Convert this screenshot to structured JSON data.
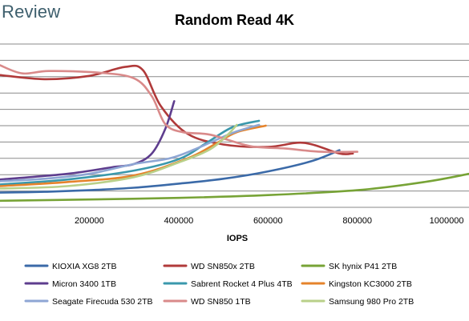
{
  "watermark": "Review",
  "chart_data": {
    "type": "line",
    "title": "Random Read 4K",
    "xlabel": "IOPS",
    "ylabel": "",
    "xlim": [
      0,
      1050000
    ],
    "ylim": [
      0,
      10
    ],
    "xticks": [
      200000,
      400000,
      600000,
      800000,
      1000000
    ],
    "xtick_labels": [
      "200000",
      "400000",
      "600000",
      "800000",
      "1000000"
    ],
    "grid": "horizontal",
    "legend_position": "bottom",
    "series": [
      {
        "name": "KIOXIA XG8 2TB",
        "color": "#3b6aa8",
        "points": [
          [
            0,
            0.9
          ],
          [
            100000,
            0.95
          ],
          [
            200000,
            1.05
          ],
          [
            300000,
            1.2
          ],
          [
            400000,
            1.45
          ],
          [
            500000,
            1.75
          ],
          [
            600000,
            2.2
          ],
          [
            700000,
            2.85
          ],
          [
            760000,
            3.5
          ]
        ]
      },
      {
        "name": "WD SN850x 2TB",
        "color": "#b03a3a",
        "points": [
          [
            0,
            8.1
          ],
          [
            100000,
            7.85
          ],
          [
            200000,
            8.05
          ],
          [
            280000,
            8.6
          ],
          [
            320000,
            8.4
          ],
          [
            360000,
            6.2
          ],
          [
            420000,
            4.5
          ],
          [
            500000,
            3.85
          ],
          [
            600000,
            3.7
          ],
          [
            680000,
            3.95
          ],
          [
            760000,
            3.3
          ],
          [
            790000,
            3.3
          ]
        ]
      },
      {
        "name": "SK hynix P41 2TB",
        "color": "#77a336",
        "points": [
          [
            0,
            0.4
          ],
          [
            200000,
            0.48
          ],
          [
            400000,
            0.58
          ],
          [
            600000,
            0.75
          ],
          [
            800000,
            1.05
          ],
          [
            950000,
            1.55
          ],
          [
            1050000,
            2.05
          ]
        ]
      },
      {
        "name": "Micron 3400 1TB",
        "color": "#5e3d8e",
        "points": [
          [
            0,
            1.7
          ],
          [
            150000,
            2.05
          ],
          [
            250000,
            2.45
          ],
          [
            300000,
            2.65
          ],
          [
            340000,
            3.3
          ],
          [
            370000,
            4.8
          ],
          [
            390000,
            6.5
          ]
        ]
      },
      {
        "name": "Sabrent Rocket 4 Plus 4TB",
        "color": "#3a98ac",
        "points": [
          [
            0,
            1.4
          ],
          [
            150000,
            1.7
          ],
          [
            300000,
            2.25
          ],
          [
            400000,
            2.95
          ],
          [
            460000,
            3.9
          ],
          [
            520000,
            4.9
          ],
          [
            580000,
            5.3
          ]
        ]
      },
      {
        "name": "Kingston KC3000 2TB",
        "color": "#e5832b",
        "points": [
          [
            0,
            1.3
          ],
          [
            150000,
            1.55
          ],
          [
            300000,
            1.95
          ],
          [
            420000,
            3.0
          ],
          [
            480000,
            3.85
          ],
          [
            530000,
            4.6
          ],
          [
            595000,
            5.0
          ]
        ]
      },
      {
        "name": "Seagate Firecuda 530 2TB",
        "color": "#8ea6d4",
        "points": [
          [
            0,
            1.6
          ],
          [
            100000,
            1.75
          ],
          [
            200000,
            2.05
          ],
          [
            300000,
            2.65
          ],
          [
            380000,
            3.0
          ],
          [
            440000,
            3.6
          ],
          [
            520000,
            4.55
          ],
          [
            580000,
            5.05
          ]
        ]
      },
      {
        "name": "WD SN850 1TB",
        "color": "#d98a8a",
        "points": [
          [
            0,
            8.7
          ],
          [
            50000,
            8.2
          ],
          [
            110000,
            8.35
          ],
          [
            220000,
            8.25
          ],
          [
            300000,
            7.9
          ],
          [
            340000,
            6.8
          ],
          [
            370000,
            5.1
          ],
          [
            410000,
            4.6
          ],
          [
            470000,
            4.45
          ],
          [
            560000,
            3.75
          ],
          [
            640000,
            3.6
          ],
          [
            720000,
            3.4
          ],
          [
            800000,
            3.4
          ]
        ]
      },
      {
        "name": "Samsung 980 Pro 2TB",
        "color": "#b9d089",
        "points": [
          [
            0,
            1.15
          ],
          [
            150000,
            1.3
          ],
          [
            300000,
            1.85
          ],
          [
            400000,
            2.75
          ],
          [
            470000,
            3.55
          ],
          [
            510000,
            4.45
          ],
          [
            530000,
            5.05
          ]
        ]
      }
    ]
  }
}
